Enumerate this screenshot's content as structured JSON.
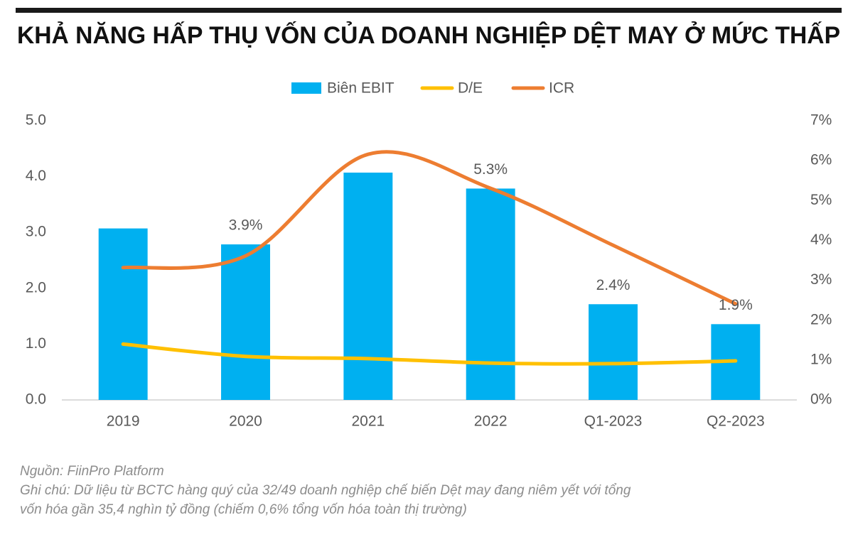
{
  "chart_data": {
    "type": "bar-line",
    "title": "KHẢ NĂNG HẤP THỤ VỐN CỦA DOANH NGHIỆP DỆT MAY Ở MỨC THẤP",
    "categories": [
      "2019",
      "2020",
      "2021",
      "2022",
      "Q1-2023",
      "Q2-2023"
    ],
    "series": [
      {
        "name": "Biên EBIT",
        "type": "bar",
        "axis": "y2",
        "color": "#00b0f0",
        "values": [
          4.3,
          3.9,
          5.7,
          5.3,
          2.4,
          1.9
        ],
        "value_labels": [
          null,
          "3.9%",
          null,
          "5.3%",
          "2.4%",
          "1.9%"
        ]
      },
      {
        "name": "D/E",
        "type": "line",
        "color": "#ffc000",
        "values": [
          1.0,
          0.78,
          0.74,
          0.66,
          0.65,
          0.7
        ]
      },
      {
        "name": "ICR",
        "type": "line",
        "color": "#ed7d31",
        "values": [
          2.37,
          2.58,
          4.4,
          3.79,
          2.77,
          1.72
        ]
      }
    ],
    "ylim": [
      0,
      5
    ],
    "yticks": [
      {
        "value": 0,
        "label": "0.0"
      },
      {
        "value": 1,
        "label": "1.0"
      },
      {
        "value": 2,
        "label": "2.0"
      },
      {
        "value": 3,
        "label": "3.0"
      },
      {
        "value": 4,
        "label": "4.0"
      },
      {
        "value": 5,
        "label": "5.0"
      }
    ],
    "y2lim": [
      0,
      7
    ],
    "y2ticks": [
      {
        "value": 0,
        "label": "0%"
      },
      {
        "value": 1,
        "label": "1%"
      },
      {
        "value": 2,
        "label": "2%"
      },
      {
        "value": 3,
        "label": "3%"
      },
      {
        "value": 4,
        "label": "4%"
      },
      {
        "value": 5,
        "label": "5%"
      },
      {
        "value": 6,
        "label": "6%"
      },
      {
        "value": 7,
        "label": "7%"
      }
    ],
    "grid": false,
    "legend": "top",
    "notes": [
      "Nguồn: FiinPro Platform",
      "Ghi chú: Dữ liệu từ BCTC hàng quý của 32/49 doanh nghiệp chế biến Dệt may đang niêm yết với tổng",
      "vốn hóa gần 35,4 nghìn tỷ đồng (chiếm 0,6% tổng vốn hóa toàn thị trường)"
    ]
  }
}
